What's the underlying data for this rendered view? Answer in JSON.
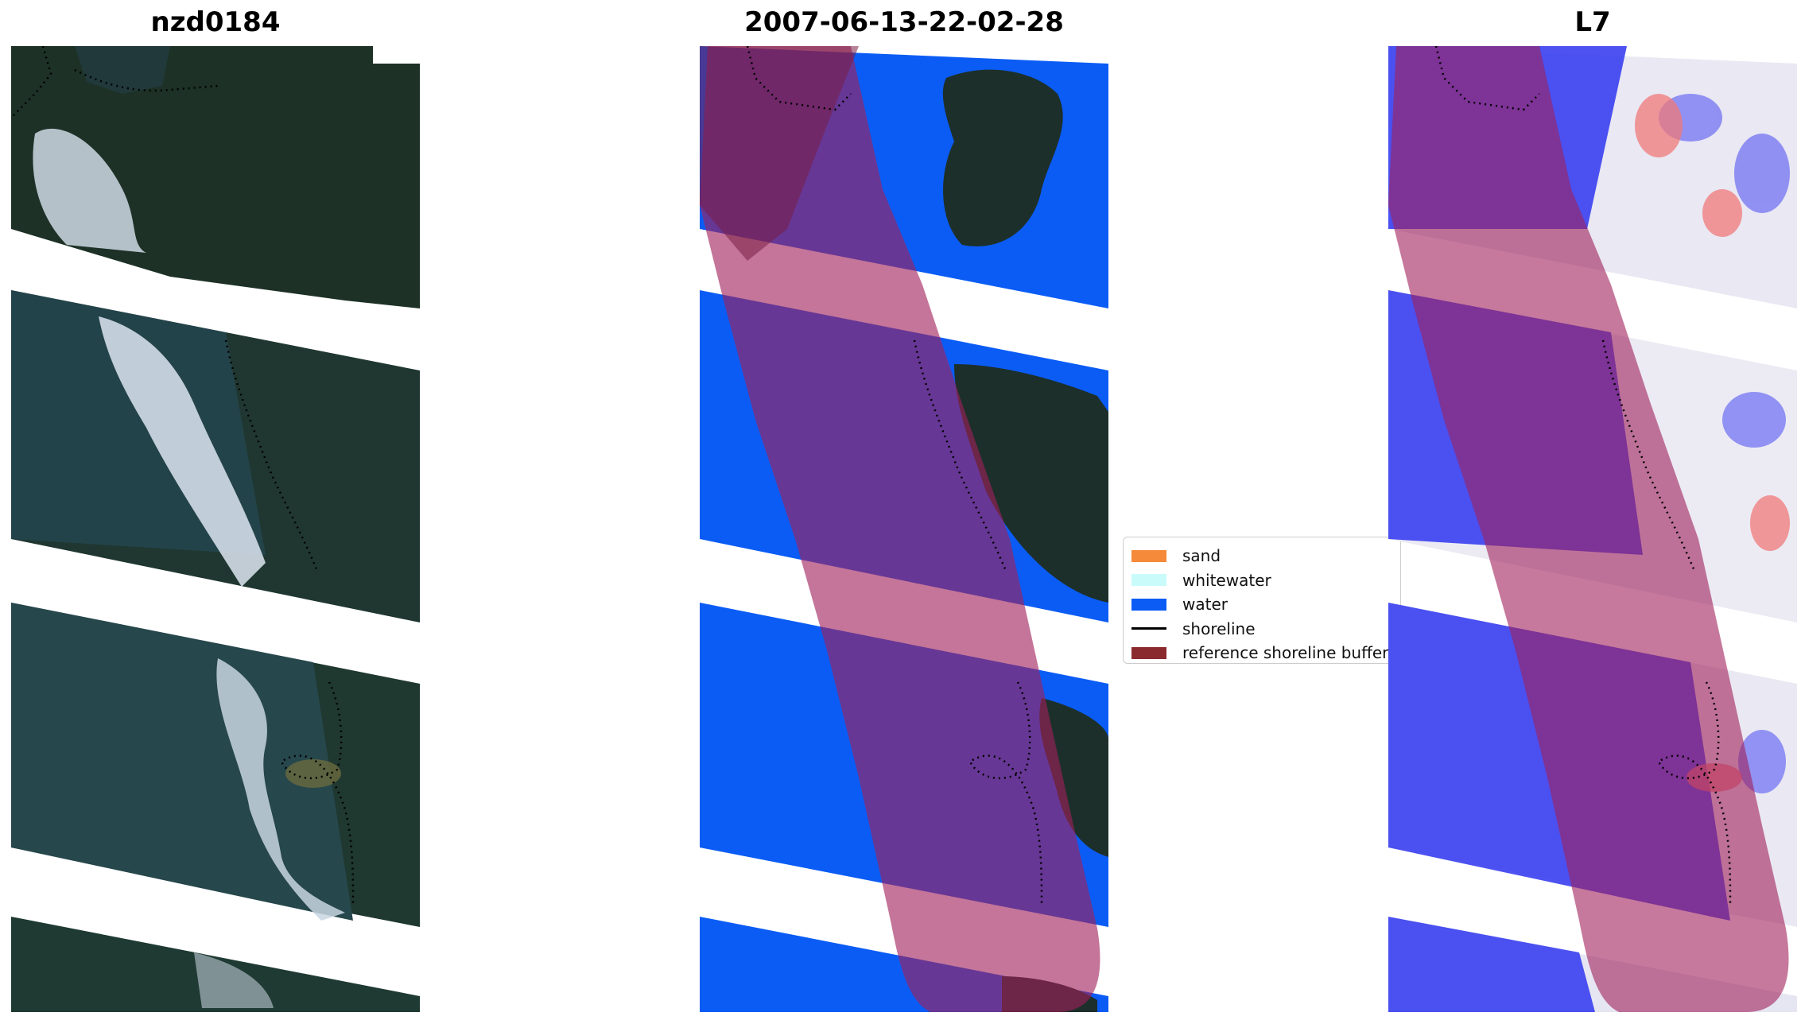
{
  "panels": {
    "rgb": {
      "title": "nzd0184"
    },
    "classified": {
      "title": "2007-06-13-22-02-28"
    },
    "index": {
      "title": "L7"
    }
  },
  "legend": {
    "items": [
      {
        "label": "sand",
        "color": "#f48a3a",
        "kind": "patch"
      },
      {
        "label": "whitewater",
        "color": "#c9fbfb",
        "kind": "patch"
      },
      {
        "label": "water",
        "color": "#0b5cf5",
        "kind": "patch"
      },
      {
        "label": "shoreline",
        "color": "#000000",
        "kind": "line"
      },
      {
        "label": "reference shoreline buffer",
        "color": "#8b2a2e",
        "kind": "patch"
      }
    ]
  },
  "colors": {
    "rgb_land": "#1e3324",
    "rgb_water": "#20404a",
    "cloud": "#d6e0ea",
    "water_class": "#0b5cf5",
    "land_class": "#1c2f2a",
    "buffer_overlay": "#a0205a",
    "index_water": "#3344ee",
    "index_land": "#f0eef6",
    "index_red": "#f27777"
  }
}
